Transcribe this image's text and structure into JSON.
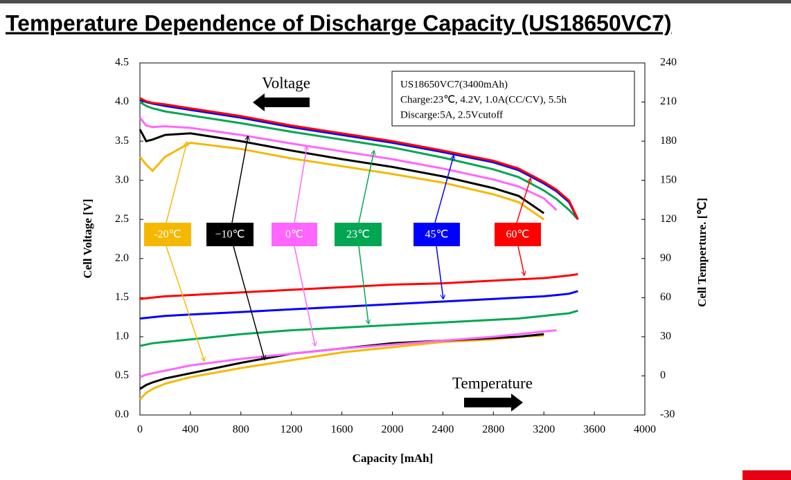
{
  "chart_data": {
    "type": "line",
    "title": "Temperature Dependence of Discharge Capacity (US18650VC7)",
    "x_label": "Capacity [mAh]",
    "y_label": "Cell Voltage [V]",
    "y2_label": "Cell Temperture. [℃]",
    "annotations": [
      "Voltage",
      "Temperature"
    ],
    "info_box": [
      "US18650VC7(3400mAh)",
      "Charge:23℃, 4.2V, 1.0A(CC/CV), 5.5h",
      "Discarge:5A, 2.5Vcutoff"
    ],
    "x": [
      0,
      50,
      100,
      200,
      400,
      800,
      1200,
      1600,
      2000,
      2400,
      2800,
      3000,
      3200,
      3300,
      3400,
      3470
    ],
    "xlim": [
      0,
      4000
    ],
    "xticks": [
      0,
      400,
      800,
      1200,
      1600,
      2000,
      2400,
      2800,
      3200,
      3600,
      4000
    ],
    "ylim": [
      0,
      4.5
    ],
    "yticks": [
      {
        "value": 0,
        "label": "0.0"
      },
      0.5,
      {
        "value": 1,
        "label": "1.0"
      },
      1.5,
      {
        "value": 2,
        "label": "2.0"
      },
      2.5,
      {
        "value": 3,
        "label": "3.0"
      },
      3.5,
      {
        "value": 4,
        "label": "4.0"
      },
      4.5
    ],
    "y2lim": [
      -30,
      240
    ],
    "y2ticks": [
      -30,
      0,
      30,
      60,
      90,
      120,
      150,
      180,
      210,
      240
    ],
    "series": [
      {
        "name": "-20℃",
        "color": "#f5b800",
        "values": [
          3.3,
          3.2,
          3.12,
          3.3,
          3.48,
          3.4,
          3.28,
          3.18,
          3.08,
          2.97,
          2.82,
          2.72,
          2.5,
          null,
          null,
          null
        ]
      },
      {
        "name": "−10℃",
        "color": "#000000",
        "values": [
          3.65,
          3.5,
          3.52,
          3.58,
          3.6,
          3.5,
          3.38,
          3.27,
          3.17,
          3.05,
          2.9,
          2.8,
          2.58,
          null,
          null,
          null
        ]
      },
      {
        "name": "0℃",
        "color": "#ff66ff",
        "values": [
          3.8,
          3.7,
          3.68,
          3.69,
          3.67,
          3.58,
          3.47,
          3.37,
          3.27,
          3.15,
          3.01,
          2.92,
          2.77,
          2.62,
          null,
          null
        ]
      },
      {
        "name": "23℃",
        "color": "#00a651",
        "values": [
          4.0,
          3.95,
          3.92,
          3.88,
          3.83,
          3.73,
          3.62,
          3.52,
          3.42,
          3.29,
          3.14,
          3.04,
          2.87,
          2.76,
          2.62,
          2.5
        ]
      },
      {
        "name": "45℃",
        "color": "#0000ff",
        "values": [
          4.03,
          4.0,
          3.98,
          3.95,
          3.9,
          3.8,
          3.68,
          3.58,
          3.48,
          3.36,
          3.23,
          3.13,
          2.96,
          2.86,
          2.72,
          2.5
        ]
      },
      {
        "name": "60℃",
        "color": "#ff0000",
        "values": [
          4.05,
          4.01,
          3.99,
          3.97,
          3.92,
          3.82,
          3.7,
          3.6,
          3.5,
          3.38,
          3.25,
          3.15,
          2.98,
          2.88,
          2.74,
          2.5
        ]
      },
      {
        "color": "#f5b800",
        "axis": "y2",
        "values": [
          -18,
          -13,
          -10,
          -6,
          -1,
          6,
          12,
          18,
          22,
          26,
          28,
          30,
          31,
          null,
          null,
          null
        ]
      },
      {
        "color": "#000000",
        "axis": "y2",
        "values": [
          -10,
          -7,
          -5,
          -2,
          2,
          10,
          17,
          21,
          25,
          27,
          29,
          30,
          32,
          null,
          null,
          null
        ]
      },
      {
        "color": "#ff66ff",
        "axis": "y2",
        "values": [
          -1,
          1,
          2,
          4,
          8,
          13,
          17,
          21,
          24,
          27,
          30,
          32,
          34,
          35,
          null,
          null
        ]
      },
      {
        "color": "#00a651",
        "axis": "y2",
        "values": [
          23,
          24,
          25,
          26,
          28,
          32,
          35,
          37,
          39,
          41,
          43,
          44,
          46,
          47,
          48,
          50
        ]
      },
      {
        "color": "#0000ff",
        "axis": "y2",
        "values": [
          44,
          44.5,
          45,
          46,
          47,
          49,
          51,
          53,
          55,
          57,
          59,
          60,
          61,
          62,
          63,
          65
        ]
      },
      {
        "color": "#ff0000",
        "axis": "y2",
        "values": [
          59,
          59.5,
          60,
          61,
          62,
          64,
          66,
          68,
          70,
          71,
          73,
          74,
          75,
          76,
          77,
          78
        ]
      }
    ]
  }
}
